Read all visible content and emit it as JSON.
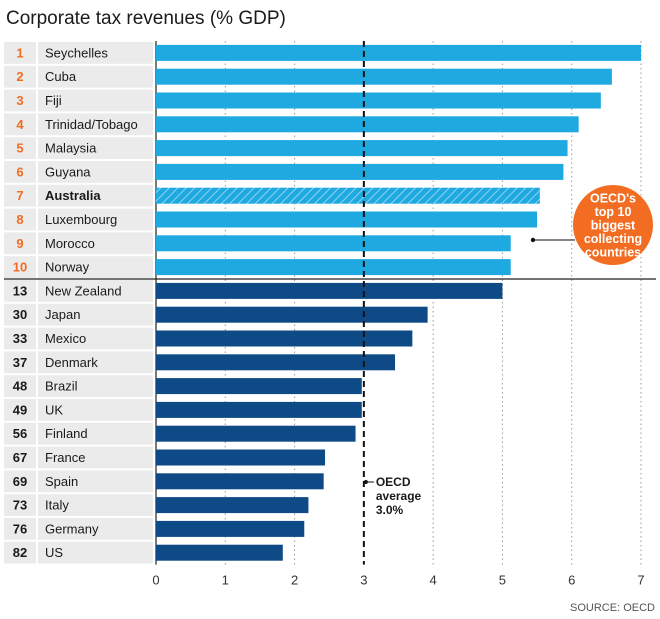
{
  "chart_data": {
    "type": "bar",
    "orientation": "horizontal",
    "title": "Corporate tax revenues (% GDP)",
    "source": "SOURCE: OECD",
    "xlim": [
      0,
      7
    ],
    "xticks": [
      "0",
      "1",
      "2",
      "3",
      "4",
      "5",
      "6",
      "7"
    ],
    "grid": true,
    "rows": [
      {
        "rank": "1",
        "country": "Seychelles",
        "value": 7.0,
        "group": "top10"
      },
      {
        "rank": "2",
        "country": "Cuba",
        "value": 6.58,
        "group": "top10"
      },
      {
        "rank": "3",
        "country": "Fiji",
        "value": 6.42,
        "group": "top10"
      },
      {
        "rank": "4",
        "country": "Trinidad/Tobago",
        "value": 6.1,
        "group": "top10"
      },
      {
        "rank": "5",
        "country": "Malaysia",
        "value": 5.94,
        "group": "top10"
      },
      {
        "rank": "6",
        "country": "Guyana",
        "value": 5.88,
        "group": "top10"
      },
      {
        "rank": "7",
        "country": "Australia",
        "value": 5.54,
        "group": "top10",
        "highlight": true
      },
      {
        "rank": "8",
        "country": "Luxembourg",
        "value": 5.5,
        "group": "top10"
      },
      {
        "rank": "9",
        "country": "Morocco",
        "value": 5.12,
        "group": "top10"
      },
      {
        "rank": "10",
        "country": "Norway",
        "value": 5.12,
        "group": "top10"
      },
      {
        "rank": "13",
        "country": "New Zealand",
        "value": 5.0,
        "group": "other"
      },
      {
        "rank": "30",
        "country": "Japan",
        "value": 3.92,
        "group": "other"
      },
      {
        "rank": "33",
        "country": "Mexico",
        "value": 3.7,
        "group": "other"
      },
      {
        "rank": "37",
        "country": "Denmark",
        "value": 3.45,
        "group": "other"
      },
      {
        "rank": "48",
        "country": "Brazil",
        "value": 2.97,
        "group": "other"
      },
      {
        "rank": "49",
        "country": "UK",
        "value": 2.97,
        "group": "other"
      },
      {
        "rank": "56",
        "country": "Finland",
        "value": 2.88,
        "group": "other"
      },
      {
        "rank": "67",
        "country": "France",
        "value": 2.44,
        "group": "other"
      },
      {
        "rank": "69",
        "country": "Spain",
        "value": 2.42,
        "group": "other"
      },
      {
        "rank": "73",
        "country": "Italy",
        "value": 2.2,
        "group": "other"
      },
      {
        "rank": "76",
        "country": "Germany",
        "value": 2.14,
        "group": "other"
      },
      {
        "rank": "82",
        "country": "US",
        "value": 1.83,
        "group": "other"
      }
    ],
    "reference_line": {
      "value": 3.0,
      "label_lines": [
        "OECD",
        "average",
        "3.0%"
      ]
    },
    "callout_lines": [
      "OECD's",
      "top 10",
      "biggest",
      "collecting",
      "countries"
    ],
    "colors": {
      "top10_bar": "#1ea9e1",
      "other_bar": "#0e4a85",
      "rank_top10": "#f26d21",
      "rank_other": "#1a1a1a",
      "row_bg": "#ebebeb",
      "callout": "#f26d21",
      "reference_line": "#111111"
    }
  }
}
